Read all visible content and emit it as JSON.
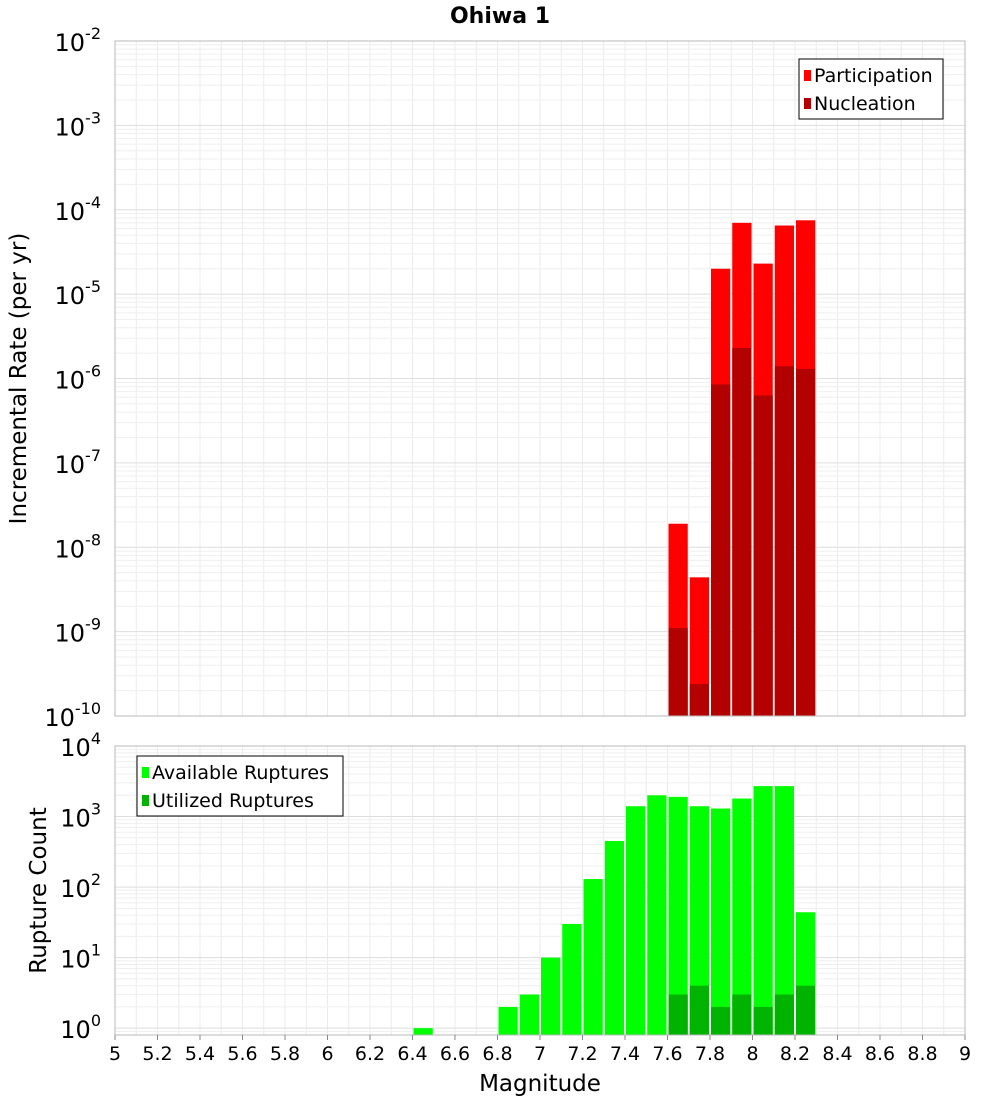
{
  "title": "Ohiwa 1",
  "colors": {
    "participation": "#ff0000",
    "nucleation": "#b30000",
    "available": "#00ff00",
    "utilized": "#00b300"
  },
  "chart_data": [
    {
      "type": "bar",
      "name": "rate",
      "title": "Ohiwa 1",
      "ylabel": "Incremental Rate (per yr)",
      "xlabel": "",
      "ylog": true,
      "ylim": [
        1e-10,
        0.01
      ],
      "xlim": [
        5,
        9
      ],
      "bin_width": 0.1,
      "grid": true,
      "legend_position": "top-right",
      "y_tick_labels": [
        {
          "base": "10",
          "exp": "-10"
        },
        {
          "base": "10",
          "exp": "-9"
        },
        {
          "base": "10",
          "exp": "-8"
        },
        {
          "base": "10",
          "exp": "-7"
        },
        {
          "base": "10",
          "exp": "-6"
        },
        {
          "base": "10",
          "exp": "-5"
        },
        {
          "base": "10",
          "exp": "-4"
        },
        {
          "base": "10",
          "exp": "-3"
        },
        {
          "base": "10",
          "exp": "-2"
        }
      ],
      "series": [
        {
          "name": "Participation",
          "color": "#ff0000",
          "x": [
            7.65,
            7.75,
            7.85,
            7.95,
            8.05,
            8.15,
            8.25
          ],
          "values": [
            1.9e-08,
            4.4e-09,
            2e-05,
            7e-05,
            2.3e-05,
            6.5e-05,
            7.5e-05
          ]
        },
        {
          "name": "Nucleation",
          "color": "#b30000",
          "x": [
            7.65,
            7.75,
            7.85,
            7.95,
            8.05,
            8.15,
            8.25
          ],
          "values": [
            1.1e-09,
            2.4e-10,
            8.5e-07,
            2.3e-06,
            6.3e-07,
            1.4e-06,
            1.3e-06
          ]
        }
      ]
    },
    {
      "type": "bar",
      "name": "count",
      "ylabel": "Rupture Count",
      "xlabel": "Magnitude",
      "ylog": true,
      "ylim": [
        0.8,
        10000
      ],
      "xlim": [
        5,
        9
      ],
      "bin_width": 0.1,
      "grid": true,
      "legend_position": "top-left",
      "x_ticks": [
        "5",
        "5.2",
        "5.4",
        "5.6",
        "5.8",
        "6",
        "6.2",
        "6.4",
        "6.6",
        "6.8",
        "7",
        "7.2",
        "7.4",
        "7.6",
        "7.8",
        "8",
        "8.2",
        "8.4",
        "8.6",
        "8.8",
        "9"
      ],
      "y_tick_labels": [
        {
          "base": "10",
          "exp": "0"
        },
        {
          "base": "10",
          "exp": "1"
        },
        {
          "base": "10",
          "exp": "2"
        },
        {
          "base": "10",
          "exp": "3"
        },
        {
          "base": "10",
          "exp": "4"
        }
      ],
      "series": [
        {
          "name": "Available Ruptures",
          "color": "#00ff00",
          "x": [
            6.45,
            6.85,
            6.95,
            7.05,
            7.15,
            7.25,
            7.35,
            7.45,
            7.55,
            7.65,
            7.75,
            7.85,
            7.95,
            8.05,
            8.15,
            8.25
          ],
          "values": [
            1,
            2,
            3,
            10,
            30,
            130,
            450,
            1400,
            2000,
            1900,
            1400,
            1300,
            1800,
            2700,
            2700,
            44
          ]
        },
        {
          "name": "Utilized Ruptures",
          "color": "#00b300",
          "x": [
            7.65,
            7.75,
            7.85,
            7.95,
            8.05,
            8.15,
            8.25
          ],
          "values": [
            3,
            4,
            2,
            3,
            2,
            3,
            4
          ]
        }
      ]
    }
  ]
}
